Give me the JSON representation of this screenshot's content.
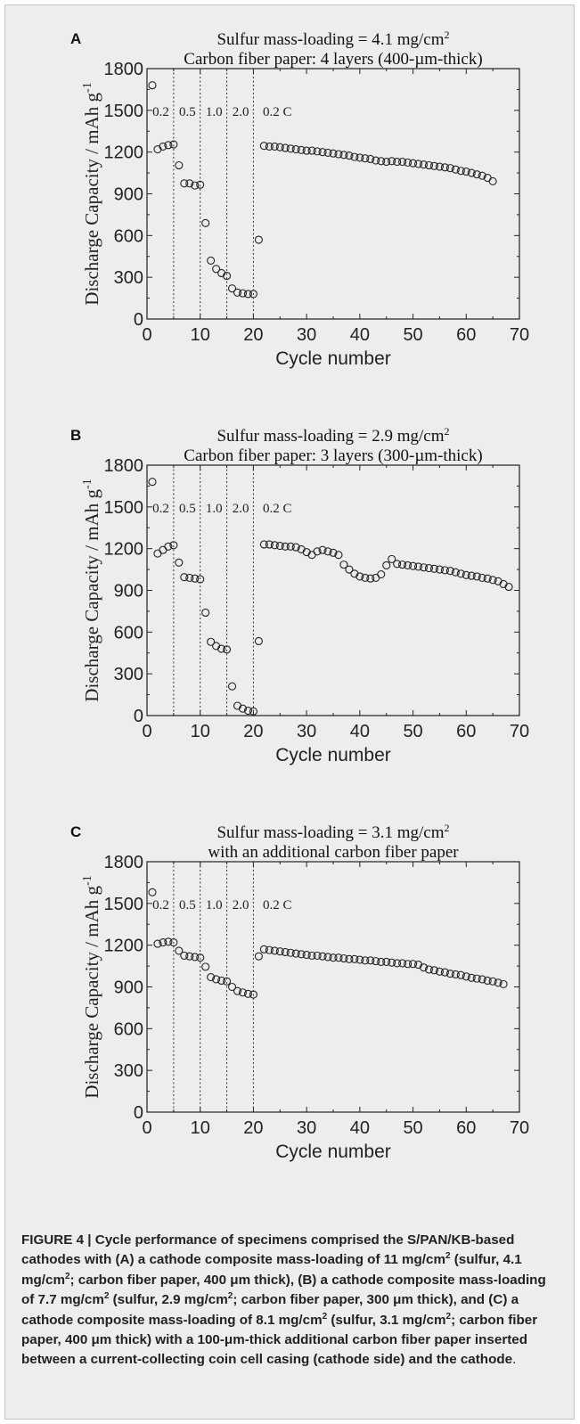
{
  "chart_data": [
    {
      "type": "scatter",
      "panel": "A",
      "title": "Sulfur mass-loading = 4.1 mg/cm",
      "title_sup": "2",
      "subtitle": "Carbon fiber paper: 4 layers (400-µm-thick)",
      "xlabel": "Cycle number",
      "ylabel": "Discharge Capacity / mAh g",
      "ylabel_sup": "-1",
      "xlim": [
        0,
        70
      ],
      "ylim": [
        0,
        1800
      ],
      "xticks": [
        "0",
        "10",
        "20",
        "30",
        "40",
        "50",
        "60",
        "70"
      ],
      "yticks": [
        "0",
        "300",
        "600",
        "900",
        "1200",
        "1500",
        "1800"
      ],
      "grid": false,
      "marker": "open-circle",
      "rate_dividers": [
        5,
        10,
        15,
        20
      ],
      "rate_labels": [
        "0.2",
        "0.5",
        "1.0",
        "2.0",
        "0.2 C"
      ],
      "x": [
        1,
        2,
        3,
        4,
        5,
        6,
        7,
        8,
        9,
        10,
        11,
        12,
        13,
        14,
        15,
        16,
        17,
        18,
        19,
        20,
        21,
        22,
        23,
        24,
        25,
        26,
        27,
        28,
        29,
        30,
        31,
        32,
        33,
        34,
        35,
        36,
        37,
        38,
        39,
        40,
        41,
        42,
        43,
        44,
        45,
        46,
        47,
        48,
        49,
        50,
        51,
        52,
        53,
        54,
        55,
        56,
        57,
        58,
        59,
        60,
        61,
        62,
        63,
        64,
        65
      ],
      "y": [
        1680,
        1220,
        1240,
        1250,
        1255,
        1105,
        975,
        975,
        960,
        965,
        690,
        420,
        360,
        330,
        310,
        220,
        190,
        185,
        180,
        180,
        570,
        1245,
        1240,
        1240,
        1235,
        1230,
        1225,
        1220,
        1215,
        1210,
        1210,
        1205,
        1200,
        1195,
        1190,
        1185,
        1180,
        1175,
        1165,
        1160,
        1155,
        1150,
        1140,
        1135,
        1130,
        1135,
        1130,
        1130,
        1125,
        1120,
        1115,
        1110,
        1105,
        1100,
        1095,
        1090,
        1085,
        1075,
        1065,
        1060,
        1050,
        1040,
        1030,
        1015,
        990
      ]
    },
    {
      "type": "scatter",
      "panel": "B",
      "title": "Sulfur mass-loading = 2.9 mg/cm",
      "title_sup": "2",
      "subtitle": "Carbon fiber paper: 3 layers (300-µm-thick)",
      "xlabel": "Cycle number",
      "ylabel": "Discharge Capacity / mAh g",
      "ylabel_sup": "-1",
      "xlim": [
        0,
        70
      ],
      "ylim": [
        0,
        1800
      ],
      "xticks": [
        "0",
        "10",
        "20",
        "30",
        "40",
        "50",
        "60",
        "70"
      ],
      "yticks": [
        "0",
        "300",
        "600",
        "900",
        "1200",
        "1500",
        "1800"
      ],
      "grid": false,
      "marker": "open-circle",
      "rate_dividers": [
        5,
        10,
        15,
        20
      ],
      "rate_labels": [
        "0.2",
        "0.5",
        "1.0",
        "2.0",
        "0.2 C"
      ],
      "x": [
        1,
        2,
        3,
        4,
        5,
        6,
        7,
        8,
        9,
        10,
        11,
        12,
        13,
        14,
        15,
        16,
        17,
        18,
        19,
        20,
        21,
        22,
        23,
        24,
        25,
        26,
        27,
        28,
        29,
        30,
        31,
        32,
        33,
        34,
        35,
        36,
        37,
        38,
        39,
        40,
        41,
        42,
        43,
        44,
        45,
        46,
        47,
        48,
        49,
        50,
        51,
        52,
        53,
        54,
        55,
        56,
        57,
        58,
        59,
        60,
        61,
        62,
        63,
        64,
        65,
        66,
        67,
        68
      ],
      "y": [
        1680,
        1165,
        1190,
        1215,
        1225,
        1100,
        995,
        990,
        985,
        980,
        740,
        530,
        500,
        480,
        475,
        210,
        70,
        50,
        35,
        30,
        535,
        1230,
        1230,
        1225,
        1220,
        1215,
        1215,
        1210,
        1195,
        1175,
        1155,
        1180,
        1190,
        1180,
        1170,
        1155,
        1085,
        1050,
        1020,
        1000,
        990,
        985,
        990,
        1015,
        1080,
        1125,
        1090,
        1085,
        1080,
        1075,
        1070,
        1065,
        1060,
        1055,
        1050,
        1045,
        1040,
        1030,
        1020,
        1010,
        1005,
        1000,
        990,
        985,
        975,
        965,
        945,
        925
      ]
    },
    {
      "type": "scatter",
      "panel": "C",
      "title": "Sulfur mass-loading = 3.1 mg/cm",
      "title_sup": "2",
      "subtitle": "with an additional carbon fiber paper",
      "xlabel": "Cycle number",
      "ylabel": "Discharge Capacity / mAh g",
      "ylabel_sup": "-1",
      "xlim": [
        0,
        70
      ],
      "ylim": [
        0,
        1800
      ],
      "xticks": [
        "0",
        "10",
        "20",
        "30",
        "40",
        "50",
        "60",
        "70"
      ],
      "yticks": [
        "0",
        "300",
        "600",
        "900",
        "1200",
        "1500",
        "1800"
      ],
      "grid": false,
      "marker": "open-circle",
      "rate_dividers": [
        5,
        10,
        15,
        20
      ],
      "rate_labels": [
        "0.2",
        "0.5",
        "1.0",
        "2.0",
        "0.2 C"
      ],
      "x": [
        1,
        2,
        3,
        4,
        5,
        6,
        7,
        8,
        9,
        10,
        11,
        12,
        13,
        14,
        15,
        16,
        17,
        18,
        19,
        20,
        21,
        22,
        23,
        24,
        25,
        26,
        27,
        28,
        29,
        30,
        31,
        32,
        33,
        34,
        35,
        36,
        37,
        38,
        39,
        40,
        41,
        42,
        43,
        44,
        45,
        46,
        47,
        48,
        49,
        50,
        51,
        52,
        53,
        54,
        55,
        56,
        57,
        58,
        59,
        60,
        61,
        62,
        63,
        64,
        65,
        66,
        67
      ],
      "y": [
        1580,
        1210,
        1220,
        1225,
        1220,
        1160,
        1125,
        1120,
        1115,
        1110,
        1045,
        970,
        955,
        945,
        940,
        900,
        870,
        860,
        850,
        845,
        1120,
        1170,
        1165,
        1160,
        1155,
        1150,
        1145,
        1140,
        1135,
        1130,
        1125,
        1125,
        1120,
        1115,
        1110,
        1110,
        1105,
        1100,
        1100,
        1095,
        1090,
        1090,
        1085,
        1080,
        1080,
        1075,
        1070,
        1070,
        1065,
        1065,
        1060,
        1040,
        1025,
        1020,
        1010,
        1005,
        995,
        990,
        985,
        975,
        965,
        960,
        955,
        945,
        940,
        930,
        920
      ]
    }
  ],
  "caption": {
    "figure_label": "FIGURE 4 | ",
    "text_1": "Cycle performance of specimens comprised the S/PAN/KB-based cathodes with (A) a cathode composite mass-loading of 11 mg/cm",
    "sup_1": "2",
    "text_2": " (sulfur, 4.1 mg/cm",
    "sup_2": "2",
    "text_3": "; carbon fiber paper, 400 μm thick), (B) a cathode composite mass-loading of 7.7 mg/cm",
    "sup_3": "2",
    "text_4": " (sulfur, 2.9 mg/cm",
    "sup_4": "2",
    "text_5": "; carbon fiber paper, 300 μm thick), and (C) a cathode composite mass-loading of 8.1 mg/cm",
    "sup_5": "2",
    "text_6": " (sulfur, 3.1 mg/cm",
    "sup_6": "2",
    "text_7": "; carbon fiber paper, 400 μm thick) with a 100-μm-thick additional carbon fiber paper inserted between a current-collecting coin cell casing (cathode side) and the cathode",
    "text_8": "."
  }
}
